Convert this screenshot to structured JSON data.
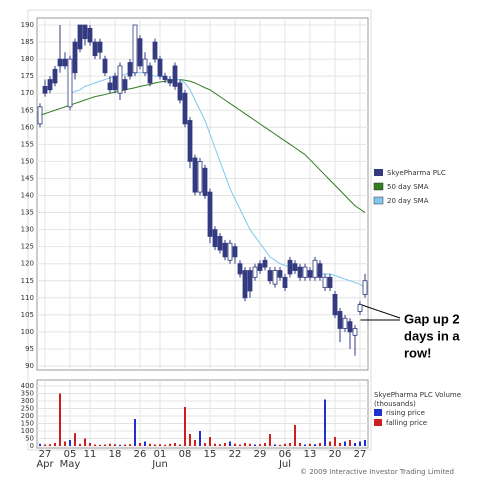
{
  "chart_data": {
    "type": "candlestick",
    "categories": [
      null,
      "27",
      null,
      null,
      null,
      null,
      "05",
      null,
      null,
      null,
      "11",
      null,
      null,
      null,
      null,
      "18",
      null,
      null,
      null,
      null,
      "26",
      null,
      null,
      null,
      "01",
      null,
      null,
      null,
      null,
      "08",
      null,
      null,
      null,
      null,
      "15",
      null,
      null,
      null,
      null,
      "22",
      null,
      null,
      null,
      null,
      "29",
      null,
      null,
      null,
      null,
      "06",
      null,
      null,
      null,
      null,
      "13",
      null,
      null,
      null,
      null,
      "20",
      null,
      null,
      null,
      null,
      "27",
      null
    ],
    "months": [
      null,
      "Apr",
      null,
      null,
      null,
      null,
      "May",
      null,
      null,
      null,
      null,
      null,
      null,
      null,
      null,
      null,
      null,
      null,
      null,
      null,
      null,
      null,
      null,
      null,
      "Jun",
      null,
      null,
      null,
      null,
      null,
      null,
      null,
      null,
      null,
      null,
      null,
      null,
      null,
      null,
      null,
      null,
      null,
      null,
      null,
      null,
      null,
      null,
      null,
      null,
      "Jul",
      null,
      null,
      null,
      null,
      null,
      null,
      null,
      null,
      null,
      null,
      null,
      null,
      null,
      null,
      null,
      null
    ],
    "name": "SkyePharma PLC",
    "color": "#333a80",
    "open": [
      161,
      172,
      174,
      177,
      180,
      180,
      166,
      185,
      190,
      190,
      189,
      185,
      185,
      180,
      173,
      175,
      170,
      174,
      179,
      176,
      186,
      176,
      178,
      185,
      180,
      175,
      174,
      178,
      173,
      170,
      162,
      151,
      141,
      148,
      141,
      130,
      128,
      126,
      121,
      125,
      120,
      118,
      118,
      116,
      120,
      121,
      118,
      114,
      118,
      116,
      121,
      120,
      119,
      116,
      118,
      116,
      120,
      113,
      116,
      111,
      106,
      101,
      103,
      99,
      106,
      111
    ],
    "high": [
      167,
      174,
      175,
      178,
      190,
      182,
      181,
      186,
      190,
      190,
      190,
      186,
      186,
      181,
      175,
      176,
      179,
      175,
      180,
      190,
      187,
      182,
      179,
      186,
      181,
      176,
      175,
      179,
      174,
      171,
      163,
      152,
      151,
      149,
      142,
      131,
      129,
      127,
      127,
      126,
      121,
      119,
      119,
      120,
      121,
      122,
      119,
      119,
      119,
      117,
      122,
      121,
      120,
      120,
      119,
      122,
      121,
      117,
      117,
      112,
      107,
      105,
      104,
      102,
      109,
      117
    ],
    "low": [
      160,
      169,
      170,
      172,
      176,
      177,
      165,
      174,
      182,
      184,
      184,
      180,
      180,
      175,
      170,
      170,
      168,
      170,
      174,
      175,
      177,
      175,
      172,
      179,
      174,
      173,
      172,
      171,
      167,
      160,
      148,
      140,
      140,
      139,
      126,
      124,
      123,
      121,
      120,
      120,
      116,
      109,
      110,
      115,
      117,
      118,
      114,
      113,
      115,
      112,
      116,
      117,
      115,
      115,
      115,
      115,
      115,
      112,
      112,
      104,
      97,
      100,
      95,
      93,
      105,
      110
    ],
    "close": [
      166,
      170,
      171,
      173,
      178,
      178,
      180,
      176,
      183,
      186,
      185,
      181,
      182,
      176,
      171,
      171,
      178,
      171,
      175,
      190,
      178,
      180,
      173,
      180,
      175,
      174,
      173,
      172,
      168,
      161,
      150,
      141,
      150,
      140,
      128,
      125,
      124,
      122,
      126,
      122,
      117,
      110,
      112,
      119,
      118,
      119,
      115,
      118,
      116,
      113,
      117,
      118,
      116,
      119,
      116,
      121,
      116,
      116,
      113,
      105,
      101,
      104,
      100,
      101,
      108,
      115
    ],
    "series": [
      {
        "name": "50 day SMA",
        "color": "#2f7d1e",
        "values": [
          163.5,
          164,
          164.5,
          165,
          165.5,
          166,
          166.5,
          167,
          167.5,
          168,
          168.5,
          169,
          169.3,
          169.6,
          170,
          170.3,
          170.6,
          171,
          171.3,
          171.6,
          172,
          172.3,
          172.6,
          173,
          173.3,
          173.5,
          173.7,
          174,
          174,
          173.8,
          173.5,
          173,
          172.3,
          171.6,
          171,
          170,
          169,
          168,
          167,
          166,
          165,
          164,
          163,
          162,
          161,
          160,
          159,
          158,
          157,
          156,
          155,
          154,
          153,
          152,
          150.5,
          149,
          147.5,
          146,
          144.5,
          143,
          141.5,
          140,
          138.5,
          137,
          136,
          135
        ]
      },
      {
        "name": "20 day SMA",
        "color": "#7ec8ee",
        "values": [
          null,
          null,
          null,
          null,
          null,
          null,
          170,
          170.5,
          171,
          172,
          172.5,
          173,
          173.5,
          174,
          174.5,
          175,
          175,
          175.5,
          176,
          176,
          176,
          176,
          175.5,
          175,
          175,
          174.5,
          174,
          174,
          174,
          173,
          171,
          168,
          165,
          162,
          158,
          154,
          150,
          146,
          142,
          139,
          136,
          133,
          130,
          128,
          126,
          124,
          122,
          121,
          120,
          119.5,
          119,
          118.5,
          118,
          118,
          117.5,
          117.5,
          117,
          117,
          117,
          116.5,
          116,
          115.5,
          115,
          114.5,
          114,
          113
        ]
      }
    ],
    "ylim": [
      90,
      190
    ],
    "yticks": [
      90,
      95,
      100,
      105,
      110,
      115,
      120,
      125,
      130,
      135,
      140,
      145,
      150,
      155,
      160,
      165,
      170,
      175,
      180,
      185,
      190
    ],
    "annotation": [
      "Gap up 2",
      "days in a",
      "row!"
    ],
    "volume": {
      "title": "SkyePharma PLC Volume (thousands)",
      "rising": "rising price",
      "falling": "falling price",
      "rising_color": "#1f2fd0",
      "falling_color": "#cc2020",
      "values": [
        15,
        10,
        12,
        20,
        350,
        30,
        40,
        85,
        15,
        50,
        20,
        10,
        8,
        10,
        15,
        12,
        8,
        10,
        12,
        180,
        20,
        30,
        15,
        10,
        12,
        8,
        15,
        20,
        10,
        260,
        80,
        40,
        100,
        20,
        60,
        15,
        12,
        20,
        30,
        15,
        10,
        20,
        15,
        10,
        12,
        20,
        80,
        10,
        8,
        15,
        20,
        140,
        20,
        10,
        15,
        12,
        20,
        310,
        30,
        60,
        20,
        30,
        40,
        20,
        30,
        40
      ],
      "ylim": [
        0,
        400
      ],
      "yticks": [
        0,
        50,
        100,
        150,
        200,
        250,
        300,
        350,
        400
      ]
    },
    "footer": "© 2009 Interactive Investor Trading Limited"
  }
}
